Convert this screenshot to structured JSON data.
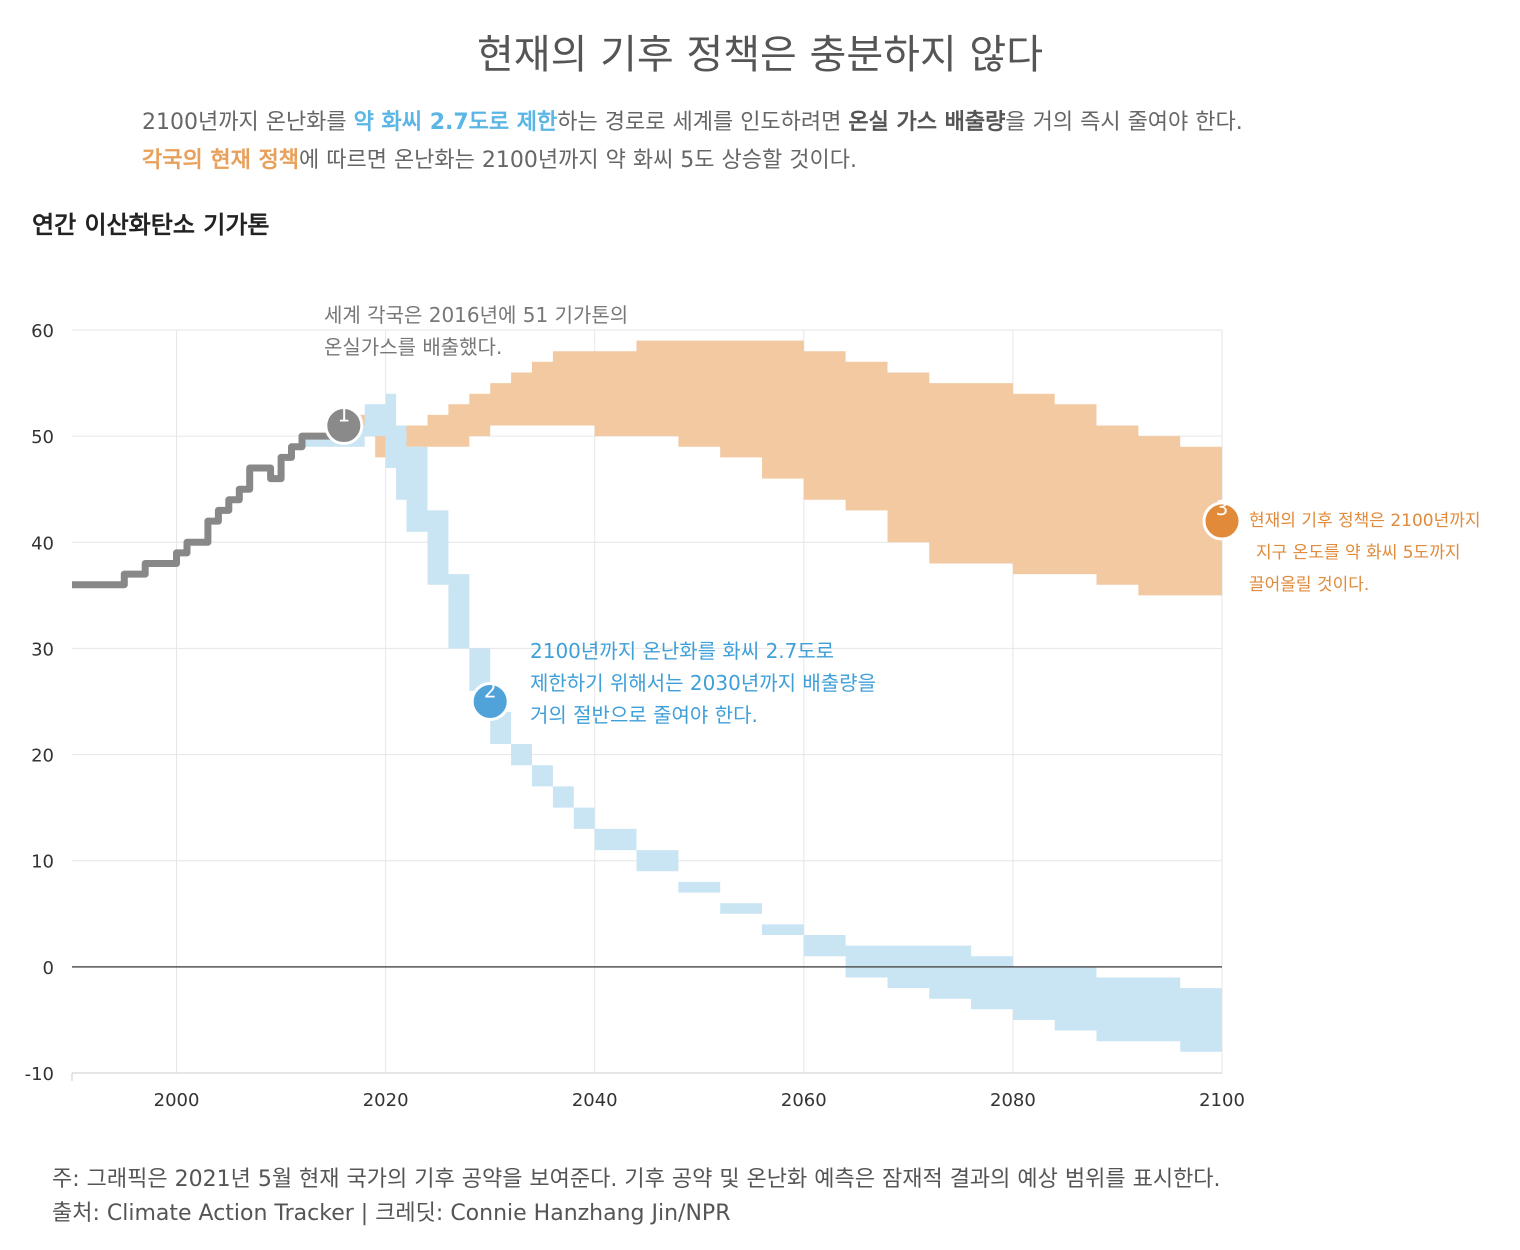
{
  "header": {
    "title": "현재의 기후 정책은 충분하지 않다",
    "subtitle_line1_part1": "2100년까지 온난화를 ",
    "subtitle_line1_highlight_blue": "약 화씨 2.7도로 제한",
    "subtitle_line1_part2": "하는 경로로 세계를 인도하려면 ",
    "subtitle_line1_highlight_bold": "온실 가스 배출량",
    "subtitle_line1_part3": "을 거의 즉시 줄여야 한다.",
    "subtitle_line2_highlight_orange": "각국의 현재 정책",
    "subtitle_line2_part1": "에 따르면 온난화는 2100년까지 약 화씨 5도 상승할 것이다."
  },
  "y_axis_heading": "연간 이산화탄소 기가톤",
  "annotations": {
    "a1_line1": "세계 각국은 2016년에 51 기가톤의",
    "a1_line2": "온실가스를 배출했다.",
    "a2_line1": "2100년까지 온난화를 화씨 2.7도로",
    "a2_line2": "제한하기 위해서는 2030년까지 배출량을",
    "a2_line3": "거의 절반으로 줄여야 한다.",
    "a3_line1": "현재의 기후 정책은 2100년까지",
    "a3_line2": "지구 온도를 약 화씨 5도까지",
    "a3_line3": "끌어올릴 것이다."
  },
  "markers": {
    "m1": "1",
    "m2": "2",
    "m3": "3"
  },
  "footer": {
    "note": "주: 그래픽은 2021년 5월 현재 국가의 기후 공약을 보여준다. 기후 공약 및 온난화 예측은 잠재적 결과의 예상 범위를 표시한다.",
    "source": "출처: Climate Action Tracker  |  크레딧: Connie Hanzhang Jin/NPR"
  },
  "colors": {
    "historical": "#888888",
    "current_policy": "#f2c9a0",
    "pathway_2_7": "#c9e4f3",
    "marker_blue": "#4fa3d9",
    "marker_orange": "#e08a3a",
    "annotation_blue": "#3f9fd8",
    "annotation_orange": "#e08a3a"
  },
  "chart_data": {
    "type": "area",
    "title": "현재의 기후 정책은 충분하지 않다",
    "ylabel": "연간 이산화탄소 기가톤",
    "xlabel": "",
    "xlim": [
      1990,
      2100
    ],
    "ylim": [
      -10,
      60
    ],
    "x_ticks": [
      2000,
      2020,
      2040,
      2060,
      2080,
      2100
    ],
    "y_ticks": [
      -10,
      0,
      10,
      20,
      30,
      40,
      50,
      60
    ],
    "grid": true,
    "series": [
      {
        "name": "historical emissions",
        "kind": "line",
        "x": [
          1990,
          1994,
          1995,
          1996,
          1997,
          1998,
          1999,
          2000,
          2001,
          2002,
          2003,
          2004,
          2005,
          2006,
          2007,
          2008,
          2009,
          2010,
          2011,
          2012,
          2013,
          2014,
          2015,
          2016
        ],
        "y": [
          36,
          36,
          37,
          37,
          38,
          38,
          38,
          39,
          40,
          40,
          42,
          43,
          44,
          45,
          47,
          47,
          46,
          48,
          49,
          50,
          50,
          50,
          51,
          51
        ]
      },
      {
        "name": "current policies range",
        "kind": "band",
        "x": [
          2016,
          2018,
          2019,
          2020,
          2021,
          2022,
          2024,
          2026,
          2028,
          2030,
          2032,
          2034,
          2036,
          2040,
          2044,
          2048,
          2052,
          2056,
          2060,
          2064,
          2068,
          2072,
          2076,
          2080,
          2084,
          2088,
          2092,
          2096,
          2100
        ],
        "upper": [
          52,
          52,
          51,
          50,
          51,
          51,
          52,
          53,
          54,
          55,
          56,
          57,
          58,
          58,
          59,
          59,
          59,
          59,
          58,
          57,
          56,
          55,
          55,
          54,
          53,
          51,
          50,
          49,
          48
        ],
        "lower": [
          51,
          51,
          48,
          50,
          49,
          49,
          49,
          49,
          50,
          51,
          51,
          51,
          51,
          50,
          50,
          49,
          48,
          46,
          44,
          43,
          40,
          38,
          38,
          37,
          37,
          36,
          35,
          35,
          35
        ]
      },
      {
        "name": "2.7°F pathway range",
        "kind": "band",
        "x": [
          2012,
          2016,
          2018,
          2019,
          2020,
          2021,
          2022,
          2024,
          2026,
          2028,
          2030,
          2032,
          2034,
          2036,
          2038,
          2040,
          2044,
          2048,
          2052,
          2056,
          2060,
          2064,
          2068,
          2072,
          2076,
          2080,
          2084,
          2088,
          2092,
          2096,
          2100
        ],
        "upper": [
          50,
          51,
          53,
          53,
          54,
          51,
          49,
          43,
          37,
          30,
          24,
          21,
          19,
          17,
          15,
          13,
          11,
          8,
          6,
          4,
          3,
          2,
          2,
          2,
          1,
          0,
          0,
          -1,
          -1,
          -2,
          -2
        ],
        "lower": [
          49,
          49,
          50,
          50,
          47,
          44,
          41,
          36,
          30,
          26,
          21,
          19,
          17,
          15,
          13,
          11,
          9,
          7,
          5,
          3,
          1,
          -1,
          -2,
          -3,
          -4,
          -5,
          -6,
          -7,
          -7,
          -8,
          -9
        ]
      }
    ],
    "annotations": [
      {
        "id": "1",
        "x": 2016,
        "y": 51,
        "text": "세계 각국은 2016년에 51 기가톤의 온실가스를 배출했다."
      },
      {
        "id": "2",
        "x": 2030,
        "y": 25,
        "text": "2100년까지 온난화를 화씨 2.7도로 제한하기 위해서는 2030년까지 배출량을 거의 절반으로 줄여야 한다."
      },
      {
        "id": "3",
        "x": 2100,
        "y": 42,
        "text": "현재의 기후 정책은 2100년까지 지구 온도를 약 화씨 5도까지 끌어올릴 것이다."
      }
    ]
  }
}
